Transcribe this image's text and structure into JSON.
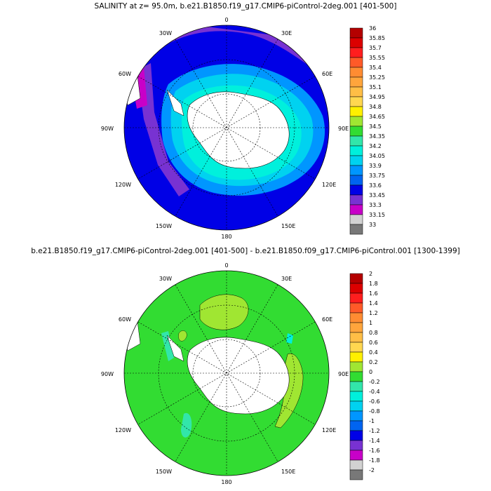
{
  "panels": [
    {
      "title": "SALINITY at z=  95.0m, b.e21.B1850.f19_g17.CMIP6-piControl-2deg.001 [401-500]",
      "colorbar": {
        "labels": [
          "36",
          "35.85",
          "35.7",
          "35.55",
          "35.4",
          "35.25",
          "35.1",
          "34.95",
          "34.8",
          "34.65",
          "34.5",
          "34.35",
          "34.2",
          "34.05",
          "33.9",
          "33.75",
          "33.6",
          "33.45",
          "33.3",
          "33.15",
          "33"
        ],
        "colors": [
          "#b40000",
          "#dc0000",
          "#ff1e1e",
          "#ff5a28",
          "#ff8c32",
          "#ffa53c",
          "#ffbe46",
          "#ffd750",
          "#fff000",
          "#a0e632",
          "#32dc32",
          "#32e6aa",
          "#00f0dc",
          "#00d2f0",
          "#0096ff",
          "#0064f0",
          "#0000e6",
          "#7832d2",
          "#c800c8",
          "#d2d2d2",
          "#787878"
        ]
      }
    },
    {
      "title": "b.e21.B1850.f19_g17.CMIP6-piControl-2deg.001 [401-500] - b.e21.B1850.f09_g17.CMIP6-piControl.001 [1300-1399]",
      "colorbar": {
        "labels": [
          "2",
          "1.8",
          "1.6",
          "1.4",
          "1.2",
          "1",
          "0.8",
          "0.6",
          "0.4",
          "0.2",
          "0",
          "-0.2",
          "-0.4",
          "-0.6",
          "-0.8",
          "-1",
          "-1.2",
          "-1.4",
          "-1.6",
          "-1.8",
          "-2"
        ],
        "colors": [
          "#b40000",
          "#dc0000",
          "#ff1e1e",
          "#ff5a28",
          "#ff8c32",
          "#ffa53c",
          "#ffbe46",
          "#ffd750",
          "#fff000",
          "#a0e632",
          "#32dc32",
          "#32e6aa",
          "#00f0dc",
          "#00d2f0",
          "#0096ff",
          "#0064f0",
          "#0000e6",
          "#7832d2",
          "#c800c8",
          "#d2d2d2",
          "#787878"
        ]
      }
    }
  ],
  "map_labels": {
    "top": "0",
    "bottom": "180",
    "left": "90W",
    "right": "90E",
    "upper_left_a": "30W",
    "upper_left_b": "60W",
    "lower_left_a": "120W",
    "lower_left_b": "150W",
    "upper_right_a": "30E",
    "upper_right_b": "60E",
    "lower_right_a": "120E",
    "lower_right_b": "150E"
  },
  "colors": {
    "ocean_1": "#0000e6",
    "ocean_2": "#32dc32",
    "land": "#ffffff",
    "background": "#ffffff"
  }
}
